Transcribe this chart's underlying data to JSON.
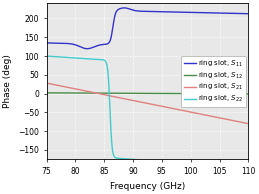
{
  "title": "",
  "xlabel": "Frequency (GHz)",
  "ylabel": "Phase (deg)",
  "xlim": [
    75,
    110
  ],
  "ylim": [
    -175,
    240
  ],
  "yticks": [
    -150,
    -100,
    -50,
    0,
    50,
    100,
    150,
    200
  ],
  "xticks": [
    75,
    80,
    85,
    90,
    95,
    100,
    105,
    110
  ],
  "freq_start": 75,
  "freq_end": 110,
  "freq_points": 1000,
  "colors": {
    "S11": "#3333cc",
    "S12": "#4a8c4a",
    "S21": "#e08080",
    "S22": "#44cccc"
  },
  "legend_labels": [
    "ring slot, $S_{11}$",
    "ring slot, $S_{12}$",
    "ring slot, $S_{21}$",
    "ring slot, $S_{22}$"
  ],
  "background_color": "#e8e8e8",
  "grid_color": "white",
  "figsize": [
    2.59,
    1.94
  ],
  "dpi": 100
}
